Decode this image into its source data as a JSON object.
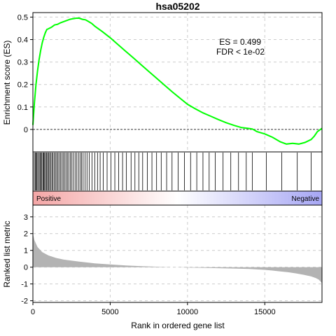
{
  "chart_data": [
    {
      "type": "line",
      "title": "hsa05202",
      "ylabel": "Enrichment score (ES)",
      "ylim": [
        -0.1,
        0.52
      ],
      "yticks": [
        0,
        0.1,
        0.2,
        0.3,
        0.4,
        0.5
      ],
      "grid": true,
      "series_color": "#00ff00",
      "baseline": 0,
      "annotations": {
        "es": "ES =  0.499",
        "fdr": "FDR  < 1e-02"
      },
      "x": [
        0,
        100,
        200,
        300,
        400,
        500,
        600,
        700,
        800,
        900,
        1000,
        1200,
        1400,
        1600,
        1800,
        2000,
        2200,
        2400,
        2600,
        2800,
        3000,
        3200,
        3400,
        3600,
        3800,
        4000,
        4500,
        5000,
        5500,
        6000,
        6500,
        7000,
        7500,
        8000,
        8500,
        9000,
        9500,
        10000,
        10500,
        11000,
        11500,
        12000,
        12500,
        13000,
        13500,
        14000,
        14200,
        14500,
        15000,
        15500,
        16000,
        16400,
        16800,
        17200,
        17600,
        18000,
        18200,
        18400,
        18700
      ],
      "y": [
        0.02,
        0.12,
        0.2,
        0.26,
        0.31,
        0.35,
        0.385,
        0.41,
        0.43,
        0.445,
        0.448,
        0.455,
        0.465,
        0.468,
        0.475,
        0.48,
        0.485,
        0.49,
        0.493,
        0.495,
        0.495,
        0.49,
        0.488,
        0.48,
        0.472,
        0.46,
        0.435,
        0.408,
        0.378,
        0.348,
        0.318,
        0.288,
        0.258,
        0.228,
        0.198,
        0.168,
        0.14,
        0.112,
        0.092,
        0.074,
        0.059,
        0.044,
        0.03,
        0.018,
        0.008,
        0.004,
        0.002,
        -0.01,
        -0.02,
        -0.035,
        -0.055,
        -0.065,
        -0.062,
        -0.065,
        -0.058,
        -0.045,
        -0.03,
        -0.01,
        0.005
      ]
    },
    {
      "type": "barcode",
      "hit_ranks": [
        80,
        150,
        210,
        260,
        320,
        400,
        460,
        520,
        580,
        650,
        700,
        760,
        820,
        890,
        950,
        1010,
        1080,
        1150,
        1230,
        1300,
        1380,
        1460,
        1540,
        1620,
        1700,
        1790,
        1880,
        1960,
        2050,
        2140,
        2230,
        2320,
        2420,
        2520,
        2620,
        2730,
        2840,
        2950,
        3050,
        3150,
        3250,
        3380,
        3500,
        3650,
        3820,
        4000,
        4180,
        4350,
        4550,
        4800,
        5050,
        5300,
        5550,
        5800,
        6050,
        6350,
        6600,
        6850,
        7100,
        7400,
        7700,
        8000,
        8300,
        8650,
        9000,
        9400,
        9800,
        10200,
        10600,
        11000,
        11400,
        11800,
        12300,
        12800,
        13300,
        13800,
        14200,
        15100,
        16100,
        17100,
        18000
      ],
      "gradient_left_label": "Positive",
      "gradient_right_label": "Negative",
      "gradient_colors": [
        "#f4a6a6",
        "#ffffff",
        "#a6a6f4"
      ]
    },
    {
      "type": "area",
      "xlabel": "Rank in ordered gene list",
      "ylabel": "Ranked list metric",
      "xlim": [
        0,
        18700
      ],
      "ylim": [
        -2.1,
        3.7
      ],
      "xticks": [
        0,
        5000,
        10000,
        15000
      ],
      "yticks": [
        -2,
        -1,
        0,
        1,
        2,
        3
      ],
      "grid": true,
      "fill_color": "#b3b3b3",
      "x": [
        0,
        100,
        300,
        600,
        1000,
        1500,
        2000,
        3000,
        4000,
        5000,
        6000,
        7000,
        8000,
        9000,
        10000,
        11000,
        12000,
        13000,
        14000,
        15000,
        15500,
        16000,
        16500,
        17000,
        17500,
        18000,
        18300,
        18500,
        18700
      ],
      "y": [
        2.0,
        1.6,
        1.2,
        0.9,
        0.7,
        0.55,
        0.45,
        0.33,
        0.23,
        0.16,
        0.1,
        0.06,
        0.03,
        0.0,
        -0.02,
        -0.04,
        -0.06,
        -0.08,
        -0.11,
        -0.16,
        -0.2,
        -0.25,
        -0.3,
        -0.37,
        -0.45,
        -0.55,
        -0.65,
        -0.75,
        -0.95
      ]
    }
  ]
}
